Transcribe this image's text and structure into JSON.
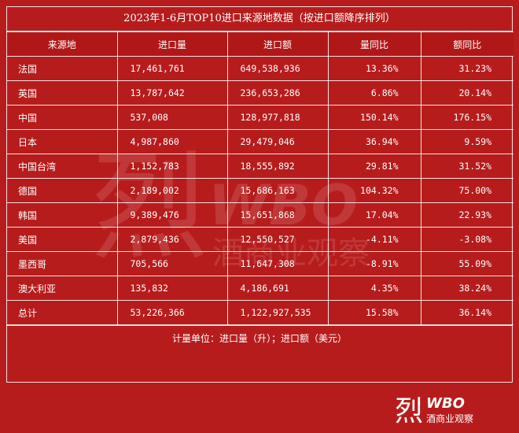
{
  "title": "2023年1-6月TOP10进口来源地数据（按进口额降序排列）",
  "headers": [
    "来源地",
    "进口量",
    "进口额",
    "量同比",
    "额同比"
  ],
  "rows": [
    [
      "法国",
      "17,461,761",
      "649,538,936",
      "13.36%",
      "31.23%"
    ],
    [
      "英国",
      "13,787,642",
      "236,653,286",
      "6.86%",
      "20.14%"
    ],
    [
      "中国",
      "537,008",
      "128,977,818",
      "150.14%",
      "176.15%"
    ],
    [
      "日本",
      "4,987,860",
      "29,479,046",
      "36.94%",
      "9.59%"
    ],
    [
      "中国台湾",
      "1,152,783",
      "18,555,892",
      "29.81%",
      "31.52%"
    ],
    [
      "德国",
      "2,189,002",
      "15,686,163",
      "104.32%",
      "75.00%"
    ],
    [
      "韩国",
      "9,389,476",
      "15,651,868",
      "17.04%",
      "22.93%"
    ],
    [
      "美国",
      "2,879,436",
      "12,550,527",
      "-4.11%",
      "-3.08%"
    ],
    [
      "墨西哥",
      "705,566",
      "11,647,308",
      "-8.91%",
      "55.09%"
    ],
    [
      "澳大利亚",
      "135,832",
      "4,186,691",
      "4.35%",
      "38.24%"
    ],
    [
      "总计",
      "53,226,366",
      "1,122,927,535",
      "15.58%",
      "36.14%"
    ]
  ],
  "note": "计量单位：进口量（升）；进口额（美元）",
  "logo": {
    "mark": "烈",
    "brand": "WBO",
    "subtitle": "酒商业观察"
  },
  "colors": {
    "background": "#b71c1c",
    "text": "#ffffff"
  }
}
